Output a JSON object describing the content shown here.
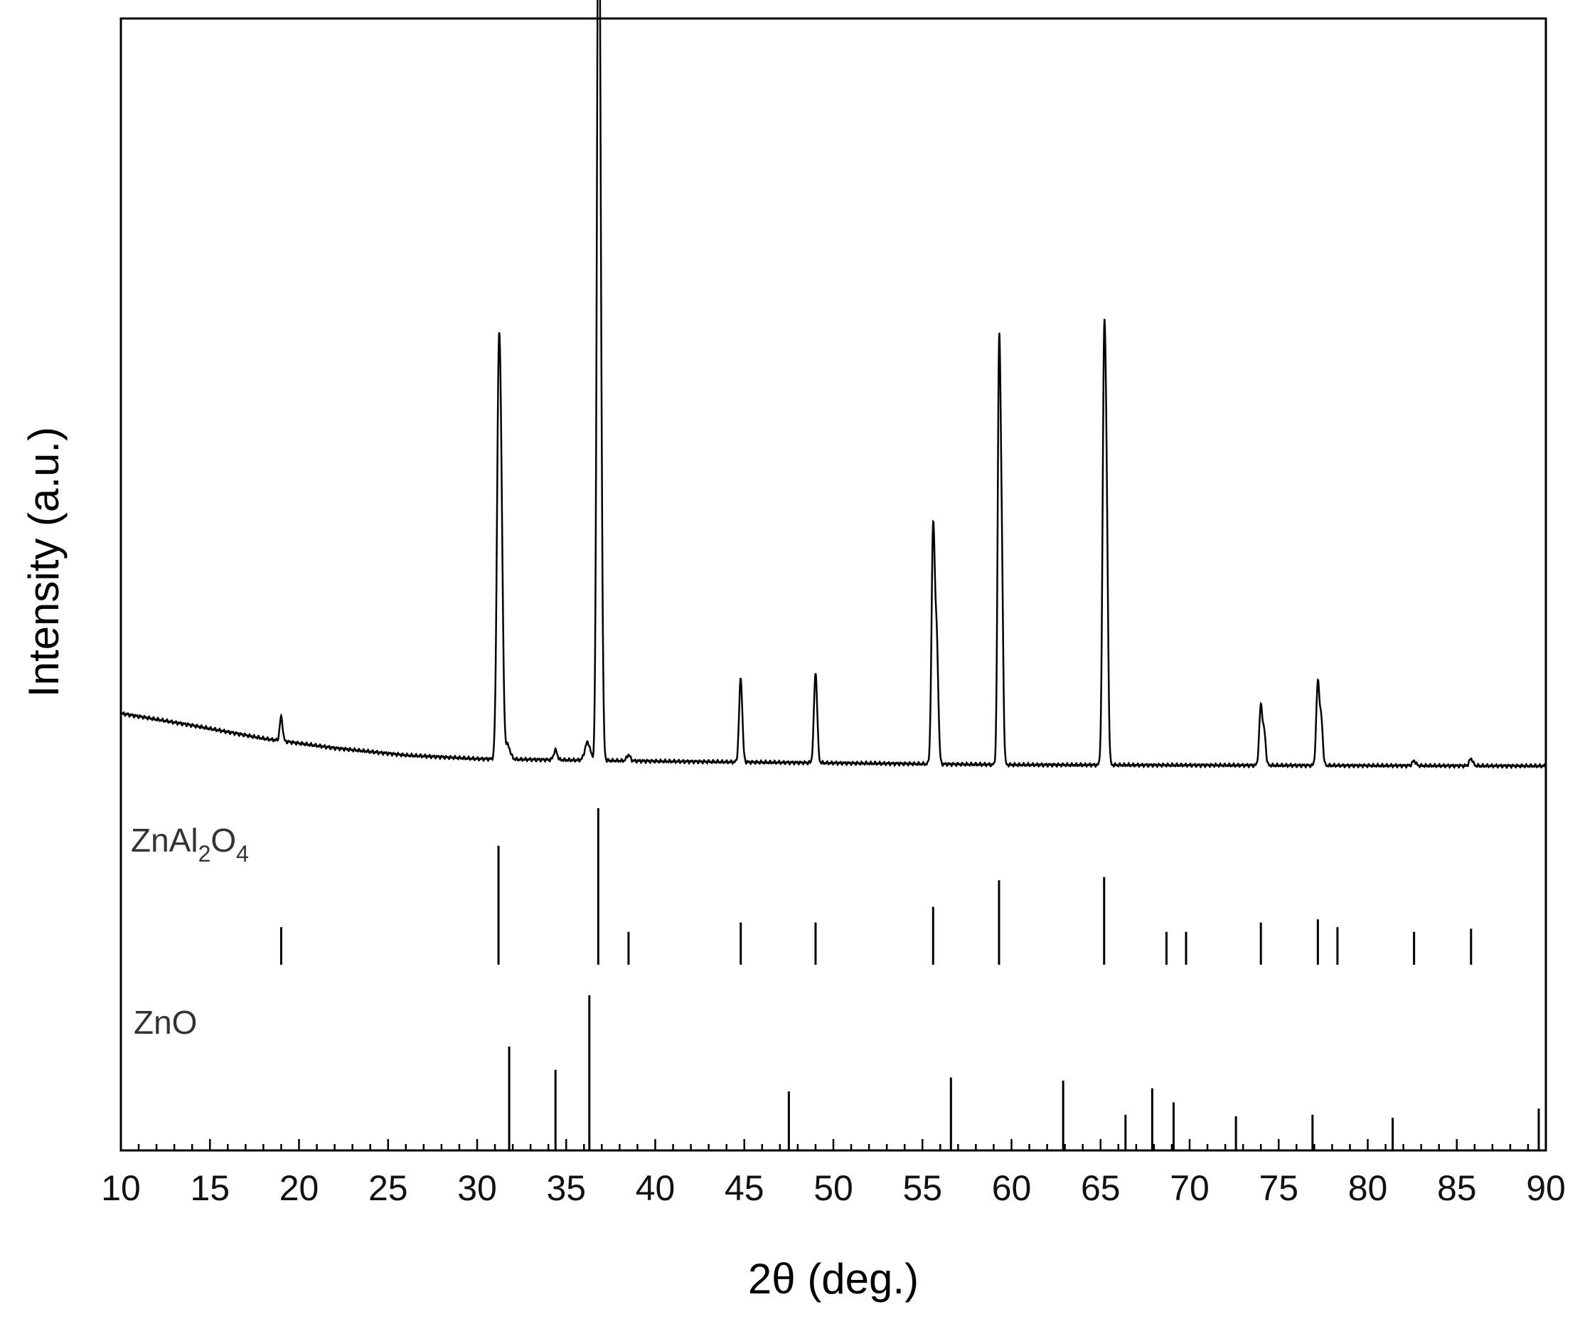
{
  "chart_data": {
    "type": "line",
    "title": "",
    "xlabel": "2θ (deg.)",
    "ylabel": "Intensity (a.u.)",
    "xlim": [
      10,
      90
    ],
    "x_ticks": [
      10,
      15,
      20,
      25,
      30,
      35,
      40,
      45,
      50,
      55,
      60,
      65,
      70,
      75,
      80,
      85,
      90
    ],
    "grid": false,
    "legend": "none",
    "background": {
      "x": [
        10,
        14,
        18,
        22,
        26,
        30,
        40,
        60,
        90
      ],
      "y": [
        4.6,
        3.6,
        2.5,
        1.7,
        1.1,
        0.8,
        0.6,
        0.3,
        0.2
      ]
    },
    "peaks": [
      {
        "x": 19.0,
        "height": 2.0,
        "width": 0.08
      },
      {
        "x": 31.2,
        "height": 28.0,
        "width": 0.1
      },
      {
        "x": 31.35,
        "height": 18.0,
        "width": 0.1
      },
      {
        "x": 31.7,
        "height": 1.2,
        "width": 0.15
      },
      {
        "x": 34.4,
        "height": 0.8,
        "width": 0.1
      },
      {
        "x": 36.2,
        "height": 1.5,
        "width": 0.15
      },
      {
        "x": 36.8,
        "height": 55.0,
        "width": 0.09
      },
      {
        "x": 36.9,
        "height": 35.0,
        "width": 0.1
      },
      {
        "x": 38.5,
        "height": 0.5,
        "width": 0.1
      },
      {
        "x": 44.8,
        "height": 7.0,
        "width": 0.09
      },
      {
        "x": 49.0,
        "height": 7.5,
        "width": 0.09
      },
      {
        "x": 55.6,
        "height": 19.5,
        "width": 0.09
      },
      {
        "x": 55.8,
        "height": 10.0,
        "width": 0.09
      },
      {
        "x": 59.3,
        "height": 33.0,
        "width": 0.08
      },
      {
        "x": 59.45,
        "height": 16.0,
        "width": 0.08
      },
      {
        "x": 65.2,
        "height": 34.0,
        "width": 0.09
      },
      {
        "x": 65.35,
        "height": 16.0,
        "width": 0.08
      },
      {
        "x": 74.0,
        "height": 5.0,
        "width": 0.09
      },
      {
        "x": 74.2,
        "height": 2.5,
        "width": 0.08
      },
      {
        "x": 77.2,
        "height": 7.0,
        "width": 0.09
      },
      {
        "x": 77.4,
        "height": 3.5,
        "width": 0.08
      },
      {
        "x": 82.6,
        "height": 0.4,
        "width": 0.1
      },
      {
        "x": 85.8,
        "height": 0.6,
        "width": 0.1
      }
    ],
    "reference_patterns": [
      {
        "name": "ZnAl2O4",
        "label_main": "ZnAl",
        "label_sub1": "2",
        "label_mid": "O",
        "label_sub2": "4",
        "lines": [
          {
            "x": 19.0,
            "h": 24
          },
          {
            "x": 31.2,
            "h": 76
          },
          {
            "x": 36.8,
            "h": 100
          },
          {
            "x": 38.5,
            "h": 21
          },
          {
            "x": 44.8,
            "h": 27
          },
          {
            "x": 49.0,
            "h": 27
          },
          {
            "x": 55.6,
            "h": 37
          },
          {
            "x": 59.3,
            "h": 54
          },
          {
            "x": 65.2,
            "h": 56
          },
          {
            "x": 68.7,
            "h": 21
          },
          {
            "x": 69.8,
            "h": 21
          },
          {
            "x": 74.0,
            "h": 27
          },
          {
            "x": 77.2,
            "h": 29
          },
          {
            "x": 78.3,
            "h": 24
          },
          {
            "x": 82.6,
            "h": 21
          },
          {
            "x": 85.8,
            "h": 23
          }
        ]
      },
      {
        "name": "ZnO",
        "label": "ZnO",
        "lines": [
          {
            "x": 31.8,
            "h": 67
          },
          {
            "x": 34.4,
            "h": 52
          },
          {
            "x": 36.3,
            "h": 100
          },
          {
            "x": 47.5,
            "h": 38
          },
          {
            "x": 56.6,
            "h": 47
          },
          {
            "x": 62.9,
            "h": 45
          },
          {
            "x": 66.4,
            "h": 23
          },
          {
            "x": 67.9,
            "h": 40
          },
          {
            "x": 69.1,
            "h": 31
          },
          {
            "x": 72.6,
            "h": 22
          },
          {
            "x": 76.9,
            "h": 23
          },
          {
            "x": 81.4,
            "h": 21
          },
          {
            "x": 89.6,
            "h": 27
          }
        ]
      }
    ]
  }
}
